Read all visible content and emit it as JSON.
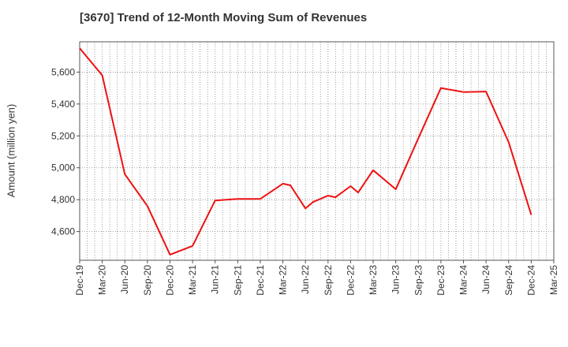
{
  "chart_data": {
    "type": "line",
    "title": "[3670]  Trend of 12-Month Moving Sum of Revenues",
    "xlabel": "",
    "ylabel": "Amount (million yen)",
    "x_ticks": [
      "Dec-19",
      "Mar-20",
      "Jun-20",
      "Sep-20",
      "Dec-20",
      "Mar-21",
      "Jun-21",
      "Sep-21",
      "Dec-21",
      "Mar-22",
      "Jun-22",
      "Sep-22",
      "Dec-22",
      "Mar-23",
      "Jun-23",
      "Sep-23",
      "Dec-23",
      "Mar-24",
      "Jun-24",
      "Sep-24",
      "Dec-24",
      "Mar-25"
    ],
    "y_ticks": [
      4600,
      4800,
      5000,
      5200,
      5400,
      5600
    ],
    "ylim": [
      4420,
      5790
    ],
    "grid": true,
    "series": [
      {
        "color": "#ee1111",
        "values": [
          5750,
          5580,
          4960,
          4760,
          4455,
          4510,
          4795,
          4805,
          4805,
          4900,
          4890,
          4745,
          4785,
          4825,
          4815,
          4885,
          4845,
          4985,
          4865,
          5185,
          5500,
          5475,
          5478,
          5160,
          4705
        ]
      }
    ],
    "x": [
      "Dec-19",
      "Mar-20",
      "Jun-20",
      "Sep-20",
      "Dec-20",
      "Mar-21",
      "Jun-21",
      "Sep-21",
      "Dec-21",
      "Mar-22",
      "Apr-22",
      "Jun-22",
      "Jul-22",
      "Sep-22",
      "Oct-22",
      "Dec-22",
      "Jan-23",
      "Mar-23",
      "Jun-23",
      "Sep-23",
      "Dec-23",
      "Mar-24",
      "Jun-24",
      "Sep-24",
      "Dec-24"
    ]
  }
}
